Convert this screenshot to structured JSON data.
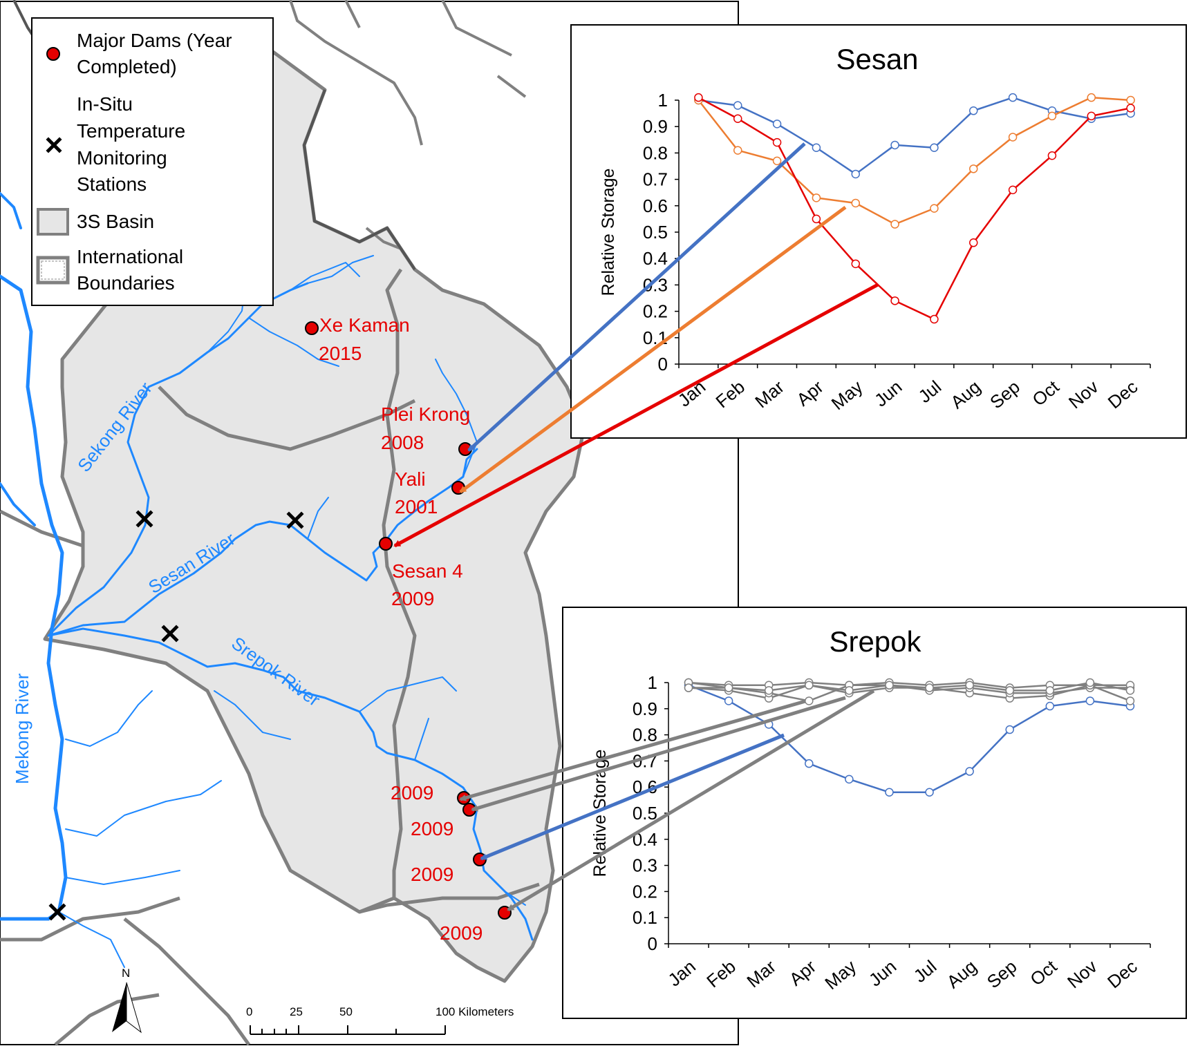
{
  "colors": {
    "basin_fill": "#e6e6e6",
    "basin_edge": "#808080",
    "river": "#1e88ff",
    "dam": "#e50000",
    "series_blue": "#4472c4",
    "series_orange": "#ed7d31",
    "series_red": "#e50000",
    "series_gray": "#808080"
  },
  "legend": {
    "dams": "Major Dams (Year Completed)",
    "dams_line1": "Major Dams (Year",
    "dams_line2": "Completed)",
    "stations_line1": "In-Situ",
    "stations_line2": "Temperature",
    "stations_line3": "Monitoring",
    "stations_line4": "Stations",
    "basin": "3S Basin",
    "boundaries_line1": "International",
    "boundaries_line2": "Boundaries"
  },
  "map": {
    "rivers": {
      "sekong": "Sekong River",
      "sesan": "Sesan River",
      "srepok": "Srepok River",
      "mekong": "Mekong River"
    },
    "dams": [
      {
        "name": "Xe Kaman",
        "year": "2015"
      },
      {
        "name": "Plei Krong",
        "year": "2008"
      },
      {
        "name": "Yali",
        "year": "2001"
      },
      {
        "name": "Sesan 4",
        "year": "2009"
      },
      {
        "name": "",
        "year": "2009"
      },
      {
        "name": "",
        "year": "2009"
      },
      {
        "name": "",
        "year": "2009"
      },
      {
        "name": "",
        "year": "2009"
      }
    ],
    "north": "N",
    "scale": {
      "t0": "0",
      "t1": "25",
      "t2": "50",
      "t3": "100 Kilometers"
    }
  },
  "chart_data": [
    {
      "type": "line",
      "title": "Sesan",
      "ylabel": "Relative Storage",
      "xlabel": "",
      "categories": [
        "Jan",
        "Feb",
        "Mar",
        "Apr",
        "May",
        "Jun",
        "Jul",
        "Aug",
        "Sep",
        "Oct",
        "Nov",
        "Dec"
      ],
      "ylim": [
        0,
        1
      ],
      "yticks": [
        "0",
        "0.1",
        "0.2",
        "0.3",
        "0.4",
        "0.5",
        "0.6",
        "0.7",
        "0.8",
        "0.9",
        "1"
      ],
      "series": [
        {
          "color": "#4472c4",
          "values": [
            1.0,
            0.98,
            0.91,
            0.82,
            0.72,
            0.83,
            0.82,
            0.96,
            1.01,
            0.96,
            0.93,
            0.95
          ]
        },
        {
          "color": "#ed7d31",
          "values": [
            1.0,
            0.81,
            0.77,
            0.63,
            0.61,
            0.53,
            0.59,
            0.74,
            0.86,
            0.94,
            1.01,
            1.0
          ]
        },
        {
          "color": "#e50000",
          "values": [
            1.01,
            0.93,
            0.84,
            0.55,
            0.38,
            0.24,
            0.17,
            0.46,
            0.66,
            0.79,
            0.94,
            0.97
          ]
        }
      ]
    },
    {
      "type": "line",
      "title": "Srepok",
      "ylabel": "Relative Storage",
      "xlabel": "",
      "categories": [
        "Jan",
        "Feb",
        "Mar",
        "Apr",
        "May",
        "Jun",
        "Jul",
        "Aug",
        "Sep",
        "Oct",
        "Nov",
        "Dec"
      ],
      "ylim": [
        0,
        1
      ],
      "yticks": [
        "0",
        "0.1",
        "0.2",
        "0.3",
        "0.4",
        "0.5",
        "0.6",
        "0.7",
        "0.8",
        "0.9",
        "1"
      ],
      "series": [
        {
          "color": "#4472c4",
          "values": [
            0.99,
            0.93,
            0.84,
            0.69,
            0.63,
            0.58,
            0.58,
            0.66,
            0.82,
            0.91,
            0.93,
            0.91
          ]
        },
        {
          "color": "#808080",
          "values": [
            0.98,
            0.97,
            0.94,
            0.99,
            0.96,
            0.98,
            0.98,
            0.96,
            0.94,
            0.95,
            0.99,
            0.93
          ]
        },
        {
          "color": "#808080",
          "values": [
            1.0,
            0.98,
            0.96,
            0.93,
            0.99,
            0.99,
            0.97,
            0.98,
            0.96,
            0.96,
            0.98,
            0.98
          ]
        },
        {
          "color": "#808080",
          "values": [
            1.0,
            0.99,
            0.99,
            1.0,
            0.99,
            1.0,
            0.99,
            1.0,
            0.98,
            0.99,
            0.99,
            0.99
          ]
        },
        {
          "color": "#808080",
          "values": [
            0.98,
            0.98,
            0.97,
            0.99,
            0.97,
            0.99,
            0.98,
            0.99,
            0.97,
            0.97,
            1.0,
            0.97
          ]
        }
      ]
    }
  ]
}
